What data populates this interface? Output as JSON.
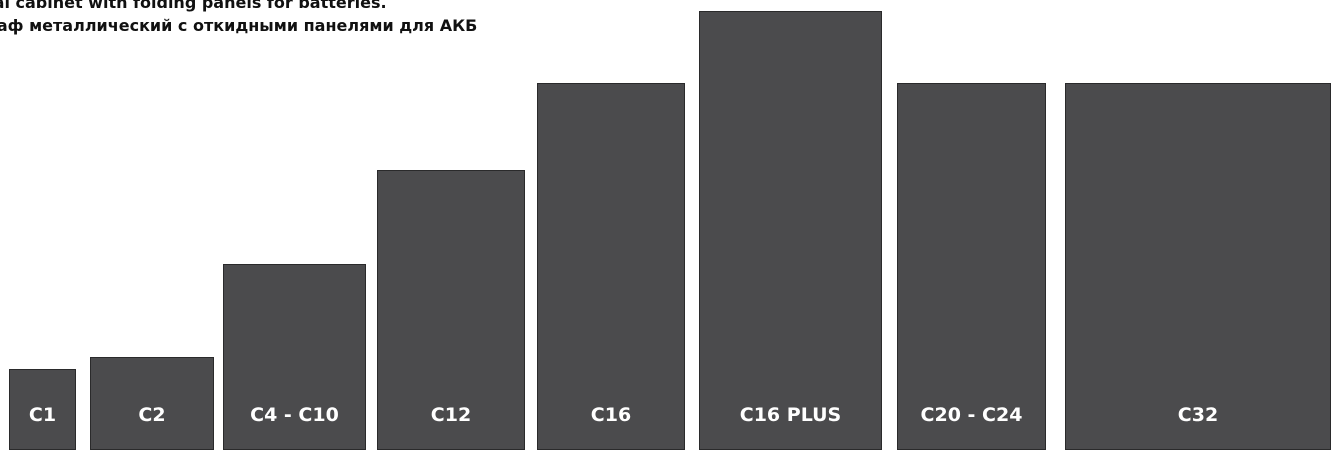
{
  "title": {
    "line_en": "tal cabinet with folding panels for batteries.",
    "line_ru": "каф металлический с откидными панелями для АКБ"
  },
  "colors": {
    "cabinet_fill": "#4b4b4d",
    "cabinet_border": "#2a2a2b",
    "label_text": "#ffffff",
    "title_text": "#111111"
  },
  "cabinets": [
    {
      "label": "C1"
    },
    {
      "label": "C2"
    },
    {
      "label": "C4 - C10"
    },
    {
      "label": "C12"
    },
    {
      "label": "C16"
    },
    {
      "label": "C16 PLUS"
    },
    {
      "label": "C20 - C24"
    },
    {
      "label": "C32"
    }
  ]
}
